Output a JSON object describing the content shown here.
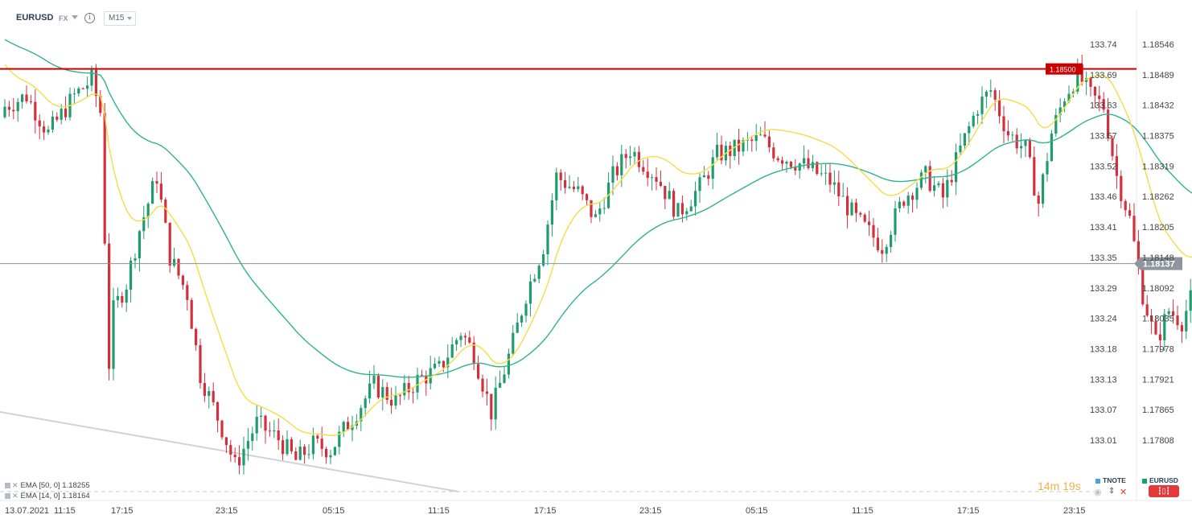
{
  "header": {
    "symbol": "EURUSD",
    "market": "FX",
    "info_glyph": "i",
    "timeframe": "M15"
  },
  "legend": [
    {
      "text": "EMA  [50, 0]  1.18255"
    },
    {
      "text": "EMA  [14, 0]  1.18164"
    }
  ],
  "countdown": "14m 19s",
  "instruments": [
    {
      "label": "TNOTE",
      "color": "#4aa3df"
    },
    {
      "label": "EURUSD",
      "color": "#1aa06a"
    }
  ],
  "chart_data": {
    "type": "candlestick",
    "title": "",
    "x_ticks": [
      "13.07.2021",
      "11:15",
      "17:15",
      "23:15",
      "05:15",
      "11:15",
      "17:15",
      "23:15",
      "05:15",
      "11:15",
      "17:15",
      "23:15"
    ],
    "left_axis_ticks": [
      "133.74",
      "133.69",
      "133.63",
      "133.57",
      "133.52",
      "133.46",
      "133.41",
      "133.35",
      "133.29",
      "133.24",
      "133.18",
      "133.13",
      "133.07",
      "133.01"
    ],
    "right_axis_ticks": [
      "1.18546",
      "1.18489",
      "1.18432",
      "1.18375",
      "1.18319",
      "1.18262",
      "1.18205",
      "1.18148",
      "1.18092",
      "1.18035",
      "1.17978",
      "1.17921",
      "1.17865",
      "1.17808"
    ],
    "ylim": [
      1.1775,
      1.186
    ],
    "current_price": "1.18137",
    "horizontal_level": {
      "label": "1.18500",
      "value": 1.185,
      "color": "#cc0000"
    },
    "colors": {
      "up": "#1f9c6e",
      "down": "#d2303d",
      "ema50": "#2bb58e",
      "ema14": "#f5dc45"
    },
    "ema50_last": 1.18255,
    "ema14_last": 1.18164,
    "trendline": {
      "from": [
        "13.07.2021 06:00",
        1.1787
      ],
      "to": [
        "14.07.2021 10:30",
        1.1776
      ]
    },
    "close_path": [
      [
        0,
        1.1843
      ],
      [
        5,
        1.1845
      ],
      [
        10,
        1.1838
      ],
      [
        16,
        1.1845
      ],
      [
        20,
        1.1848
      ],
      [
        22,
        1.1842
      ],
      [
        24,
        1.1795
      ],
      [
        25,
        1.1805
      ],
      [
        28,
        1.181
      ],
      [
        31,
        1.182
      ],
      [
        35,
        1.183
      ],
      [
        38,
        1.1815
      ],
      [
        42,
        1.1808
      ],
      [
        45,
        1.1793
      ],
      [
        50,
        1.1783
      ],
      [
        53,
        1.1776
      ],
      [
        58,
        1.1784
      ],
      [
        63,
        1.1781
      ],
      [
        67,
        1.1777
      ],
      [
        71,
        1.178
      ],
      [
        75,
        1.1779
      ],
      [
        80,
        1.1785
      ],
      [
        85,
        1.1791
      ],
      [
        90,
        1.1788
      ],
      [
        95,
        1.1792
      ],
      [
        100,
        1.1794
      ],
      [
        105,
        1.1801
      ],
      [
        108,
        1.1797
      ],
      [
        112,
        1.1786
      ],
      [
        117,
        1.1799
      ],
      [
        120,
        1.1808
      ],
      [
        124,
        1.1817
      ],
      [
        127,
        1.183
      ],
      [
        132,
        1.1827
      ],
      [
        136,
        1.1822
      ],
      [
        140,
        1.183
      ],
      [
        144,
        1.1835
      ],
      [
        150,
        1.183
      ],
      [
        155,
        1.1823
      ],
      [
        160,
        1.1828
      ],
      [
        164,
        1.1834
      ],
      [
        168,
        1.1835
      ],
      [
        174,
        1.1837
      ],
      [
        178,
        1.1834
      ],
      [
        184,
        1.1832
      ],
      [
        190,
        1.1829
      ],
      [
        196,
        1.1822
      ],
      [
        202,
        1.1817
      ],
      [
        207,
        1.1826
      ],
      [
        212,
        1.183
      ],
      [
        216,
        1.1826
      ],
      [
        220,
        1.1835
      ],
      [
        224,
        1.1843
      ],
      [
        227,
        1.1846
      ],
      [
        231,
        1.1838
      ],
      [
        235,
        1.1835
      ],
      [
        238,
        1.1825
      ],
      [
        241,
        1.1838
      ],
      [
        244,
        1.1845
      ],
      [
        247,
        1.1849
      ],
      [
        250,
        1.1845
      ],
      [
        253,
        1.1843
      ],
      [
        256,
        1.183
      ],
      [
        259,
        1.1822
      ],
      [
        262,
        1.1808
      ],
      [
        265,
        1.1799
      ],
      [
        268,
        1.1805
      ],
      [
        271,
        1.1803
      ],
      [
        275,
        1.1811
      ],
      [
        277,
        1.1814
      ]
    ]
  }
}
